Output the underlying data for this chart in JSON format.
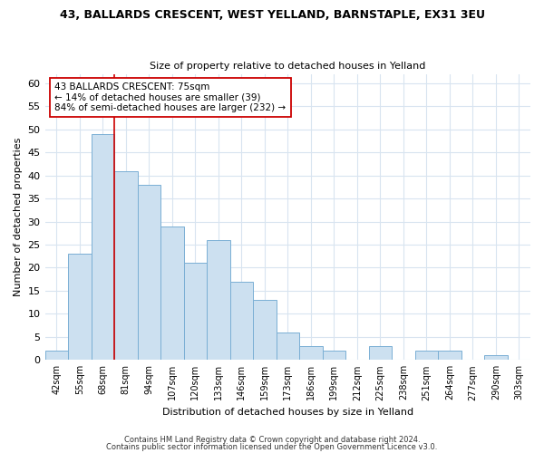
{
  "title1": "43, BALLARDS CRESCENT, WEST YELLAND, BARNSTAPLE, EX31 3EU",
  "title2": "Size of property relative to detached houses in Yelland",
  "xlabel": "Distribution of detached houses by size in Yelland",
  "ylabel": "Number of detached properties",
  "categories": [
    "42sqm",
    "55sqm",
    "68sqm",
    "81sqm",
    "94sqm",
    "107sqm",
    "120sqm",
    "133sqm",
    "146sqm",
    "159sqm",
    "173sqm",
    "186sqm",
    "199sqm",
    "212sqm",
    "225sqm",
    "238sqm",
    "251sqm",
    "264sqm",
    "277sqm",
    "290sqm",
    "303sqm"
  ],
  "values": [
    2,
    23,
    49,
    41,
    38,
    29,
    21,
    26,
    17,
    13,
    6,
    3,
    2,
    0,
    3,
    0,
    2,
    2,
    0,
    1,
    0
  ],
  "bar_color": "#cce0f0",
  "bar_edge_color": "#7aafd4",
  "vline_color": "#cc0000",
  "vline_x": 2.5,
  "annotation_text": "43 BALLARDS CRESCENT: 75sqm\n← 14% of detached houses are smaller (39)\n84% of semi-detached houses are larger (232) →",
  "annotation_box_color": "#ffffff",
  "annotation_box_edge": "#cc0000",
  "ylim": [
    0,
    62
  ],
  "yticks": [
    0,
    5,
    10,
    15,
    20,
    25,
    30,
    35,
    40,
    45,
    50,
    55,
    60
  ],
  "footer1": "Contains HM Land Registry data © Crown copyright and database right 2024.",
  "footer2": "Contains public sector information licensed under the Open Government Licence v3.0.",
  "bg_color": "#ffffff",
  "plot_bg_color": "#ffffff",
  "grid_color": "#d8e4f0",
  "title1_fontsize": 9,
  "title2_fontsize": 8,
  "ylabel_fontsize": 8,
  "xlabel_fontsize": 8
}
